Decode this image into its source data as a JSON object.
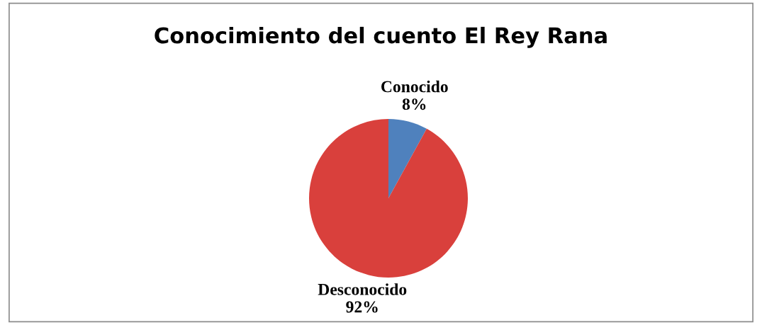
{
  "chart_data": {
    "type": "pie",
    "title": "Conocimiento del cuento El Rey Rana",
    "categories": [
      "Conocido",
      "Desconocido"
    ],
    "values": [
      8,
      92
    ],
    "value_labels": [
      "8%",
      "92%"
    ],
    "colors": [
      "#4f81bd",
      "#d9403c"
    ],
    "legend": false
  }
}
